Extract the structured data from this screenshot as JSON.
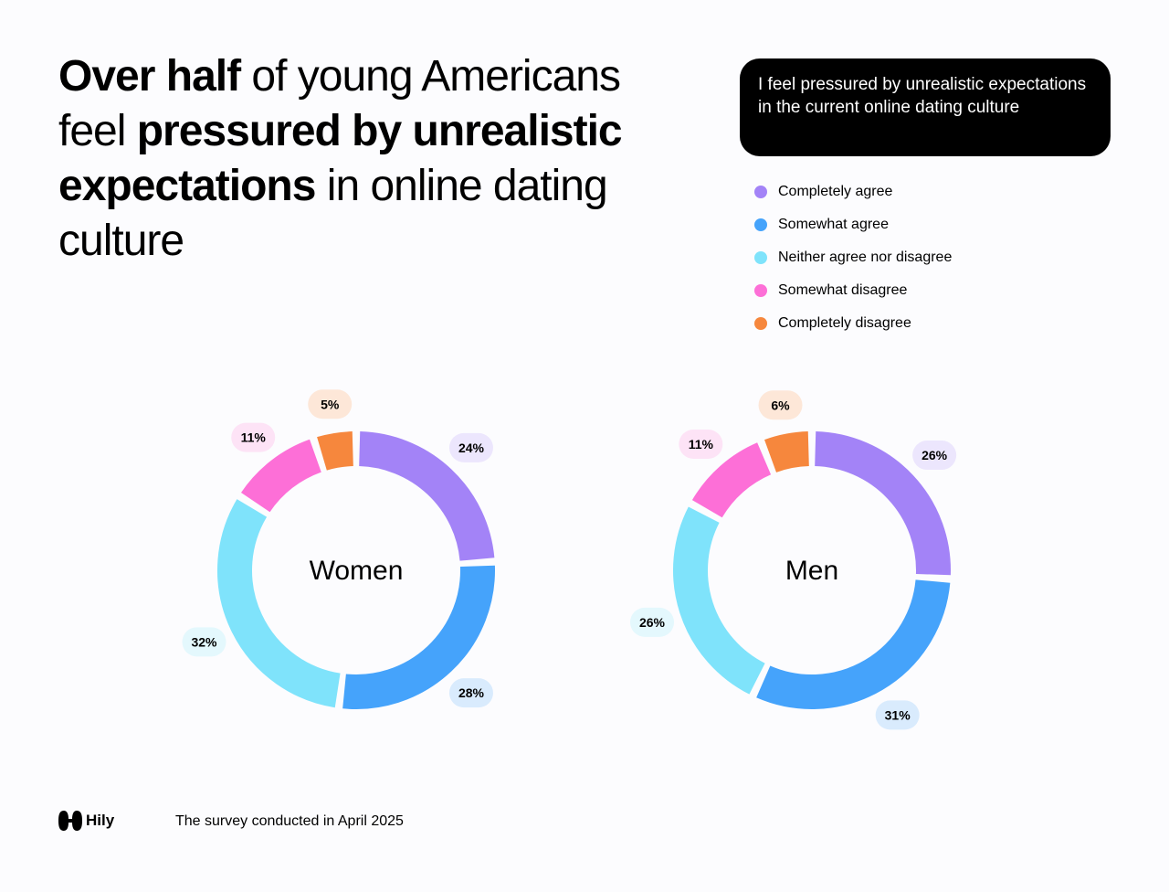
{
  "headline": {
    "part1_bold": "Over half",
    "part2": " of young Americans feel ",
    "part3_bold": "pressured by unrealistic expectations",
    "part4": " in online dating culture"
  },
  "question": "I feel pressured by unrealistic expectations in the current online dating culture",
  "legend": [
    {
      "label": "Completely agree",
      "color": "#a383f7"
    },
    {
      "label": "Somewhat agree",
      "color": "#45a3fb"
    },
    {
      "label": "Neither agree nor disagree",
      "color": "#7fe3fb"
    },
    {
      "label": "Somewhat disagree",
      "color": "#fd6fd7"
    },
    {
      "label": "Completely disagree",
      "color": "#f6873d"
    }
  ],
  "chart_data": [
    {
      "type": "pie",
      "title": "Women",
      "categories": [
        "Completely agree",
        "Somewhat agree",
        "Neither agree nor disagree",
        "Somewhat disagree",
        "Completely disagree"
      ],
      "values": [
        24,
        28,
        32,
        11,
        5
      ],
      "labels": [
        "24%",
        "28%",
        "32%",
        "11%",
        "5%"
      ]
    },
    {
      "type": "pie",
      "title": "Men",
      "categories": [
        "Completely agree",
        "Somewhat agree",
        "Neither agree nor disagree",
        "Somewhat disagree",
        "Completely disagree"
      ],
      "values": [
        26,
        31,
        26,
        11,
        6
      ],
      "labels": [
        "26%",
        "31%",
        "26%",
        "11%",
        "6%"
      ]
    }
  ],
  "label_bg_colors": [
    "#ece6fd",
    "#d9ebfd",
    "#e4f8fd",
    "#fde3f6",
    "#fde7d8"
  ],
  "footer": {
    "logo_text": "Hily",
    "note": "The survey conducted in April 2025"
  }
}
